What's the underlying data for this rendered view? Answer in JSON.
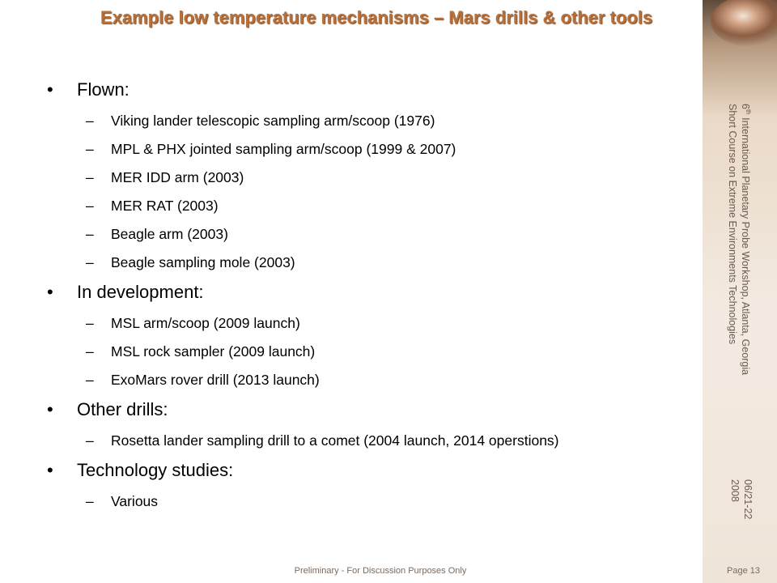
{
  "slide": {
    "title": "Example low temperature mechanisms – Mars drills & other tools",
    "sections": [
      {
        "heading": "Flown:",
        "items": [
          "Viking lander telescopic sampling arm/scoop (1976)",
          "MPL & PHX jointed sampling arm/scoop (1999 & 2007)",
          "MER IDD arm (2003)",
          "MER RAT (2003)",
          "Beagle arm (2003)",
          "Beagle sampling mole (2003)"
        ]
      },
      {
        "heading": "In development:",
        "items": [
          "MSL arm/scoop (2009 launch)",
          "MSL rock sampler (2009 launch)",
          "ExoMars rover drill (2013 launch)"
        ]
      },
      {
        "heading": "Other drills:",
        "items": [
          "Rosetta lander sampling drill to a comet (2004 launch, 2014 operstions)"
        ]
      },
      {
        "heading": "Technology studies:",
        "items": [
          "Various"
        ]
      }
    ],
    "bullet_symbol": "•",
    "dash_symbol": "–"
  },
  "sidebar": {
    "workshop_line_prefix": "6",
    "workshop_line_sup": "th",
    "workshop_line_rest": " International Planetary Probe Workshop, Atlanta, Georgia",
    "course_line": "Short Course on Extreme Environments Technologies",
    "date_line1": "06/21-22",
    "date_line2": "2008"
  },
  "footer": {
    "disclaimer": "Preliminary - For Discussion Purposes Only",
    "page": "Page 13"
  },
  "colors": {
    "title": "#b8703a",
    "sidebar_text": "#6b5a4f"
  }
}
